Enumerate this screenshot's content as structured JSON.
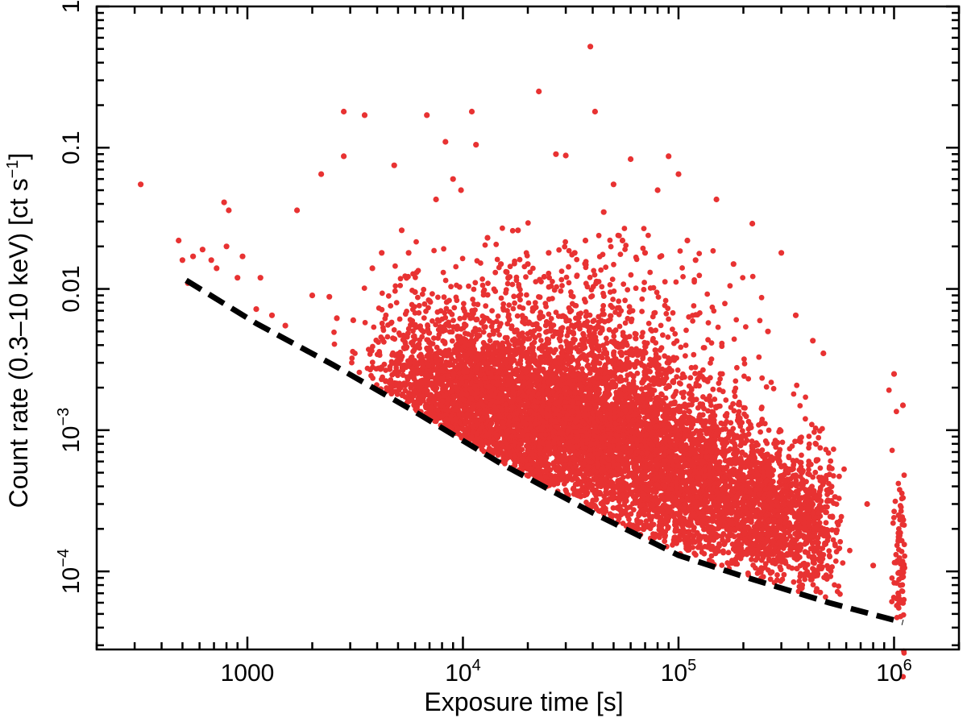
{
  "chart_data": {
    "type": "scatter",
    "xlabel": "Exposure time [s]",
    "ylabel": "Count rate (0.3–10 keV) [ct s",
    "ylabel_sup": "−1",
    "ylabel_tail": "]",
    "x_scale": "log",
    "y_scale": "log",
    "xlim": [
      200,
      2000000
    ],
    "ylim": [
      2.8e-05,
      1
    ],
    "grid": false,
    "legend": "none",
    "x_ticks": [
      {
        "value": 1000,
        "base": "1000",
        "exp": ""
      },
      {
        "value": 10000,
        "base": "10",
        "exp": "4"
      },
      {
        "value": 100000,
        "base": "10",
        "exp": "5"
      },
      {
        "value": 1000000,
        "base": "10",
        "exp": "6"
      }
    ],
    "y_ticks": [
      {
        "value": 1,
        "base": "1",
        "exp": ""
      },
      {
        "value": 0.1,
        "base": "0.1",
        "exp": ""
      },
      {
        "value": 0.01,
        "base": "0.01",
        "exp": ""
      },
      {
        "value": 0.001,
        "base": "10",
        "exp": "−3"
      },
      {
        "value": 0.0001,
        "base": "10",
        "exp": "−4"
      }
    ],
    "point_color": "#e83232",
    "series": [
      {
        "style": "points",
        "color": "#e83232",
        "x": [
          320,
          480,
          500,
          530,
          560,
          620,
          680,
          720,
          780,
          800,
          820,
          900,
          950,
          1100,
          1150,
          1300,
          1500,
          1700,
          2000,
          2200,
          2400,
          2600,
          2800,
          2800,
          3100,
          3500,
          3800,
          4200,
          4800,
          5200,
          5600,
          6000,
          6800,
          7500,
          8300,
          9000,
          9800,
          11000,
          11500,
          13000,
          15000,
          18000,
          20000,
          22500,
          25000,
          27000,
          30000,
          33000,
          37000,
          39000,
          41000,
          45000,
          50000,
          55000,
          60000,
          70000,
          80000,
          90000,
          100000,
          110000,
          120000,
          150000,
          180000,
          220000,
          260000,
          300000,
          350000,
          420000,
          470000,
          750000,
          800000,
          1000000,
          1050000,
          1100000
        ],
        "y": [
          0.055,
          0.022,
          0.016,
          0.011,
          0.017,
          0.019,
          0.016,
          0.014,
          0.041,
          0.02,
          0.036,
          0.012,
          0.017,
          0.0072,
          0.012,
          0.0065,
          0.0055,
          0.036,
          0.009,
          0.065,
          0.0088,
          0.0062,
          0.18,
          0.087,
          0.006,
          0.17,
          0.014,
          0.018,
          0.075,
          0.026,
          0.018,
          0.0095,
          0.17,
          0.043,
          0.11,
          0.06,
          0.05,
          0.18,
          0.105,
          0.023,
          0.015,
          0.026,
          0.015,
          0.25,
          0.018,
          0.09,
          0.088,
          0.018,
          0.022,
          0.52,
          0.18,
          0.035,
          0.055,
          0.022,
          0.083,
          0.018,
          0.05,
          0.087,
          0.065,
          0.022,
          0.016,
          0.043,
          0.015,
          0.029,
          0.005,
          0.018,
          0.0065,
          0.0043,
          0.0035,
          0.0003,
          0.00011,
          0.0025,
          0.00025,
          0.0015
        ]
      },
      {
        "style": "dashed-line",
        "color": "#000000",
        "x": [
          520,
          1100,
          2500,
          6000,
          15000,
          40000,
          100000,
          200000,
          500000,
          1100000
        ],
        "y": [
          0.0115,
          0.0057,
          0.0029,
          0.00135,
          0.00058,
          0.00026,
          0.00013,
          9.2e-05,
          6e-05,
          4.35e-05
        ]
      }
    ],
    "cloud": [
      {
        "x": 14000,
        "y": 0.0014,
        "sx": 0.22,
        "sy": 0.26,
        "n": 2200
      },
      {
        "x": 40000,
        "y": 0.0009,
        "sx": 0.22,
        "sy": 0.3,
        "n": 2600
      },
      {
        "x": 110000,
        "y": 0.00045,
        "sx": 0.18,
        "sy": 0.3,
        "n": 1800
      },
      {
        "x": 250000,
        "y": 0.00025,
        "sx": 0.12,
        "sy": 0.25,
        "n": 1000
      },
      {
        "x": 7000,
        "y": 0.0022,
        "sx": 0.15,
        "sy": 0.3,
        "n": 700
      },
      {
        "x": 30000,
        "y": 0.004,
        "sx": 0.35,
        "sy": 0.35,
        "n": 900
      },
      {
        "x": 420000,
        "y": 0.00018,
        "sx": 0.06,
        "sy": 0.35,
        "n": 350
      },
      {
        "x": 1080000,
        "y": 0.0001,
        "sx": 0.02,
        "sy": 0.4,
        "n": 120
      }
    ]
  }
}
